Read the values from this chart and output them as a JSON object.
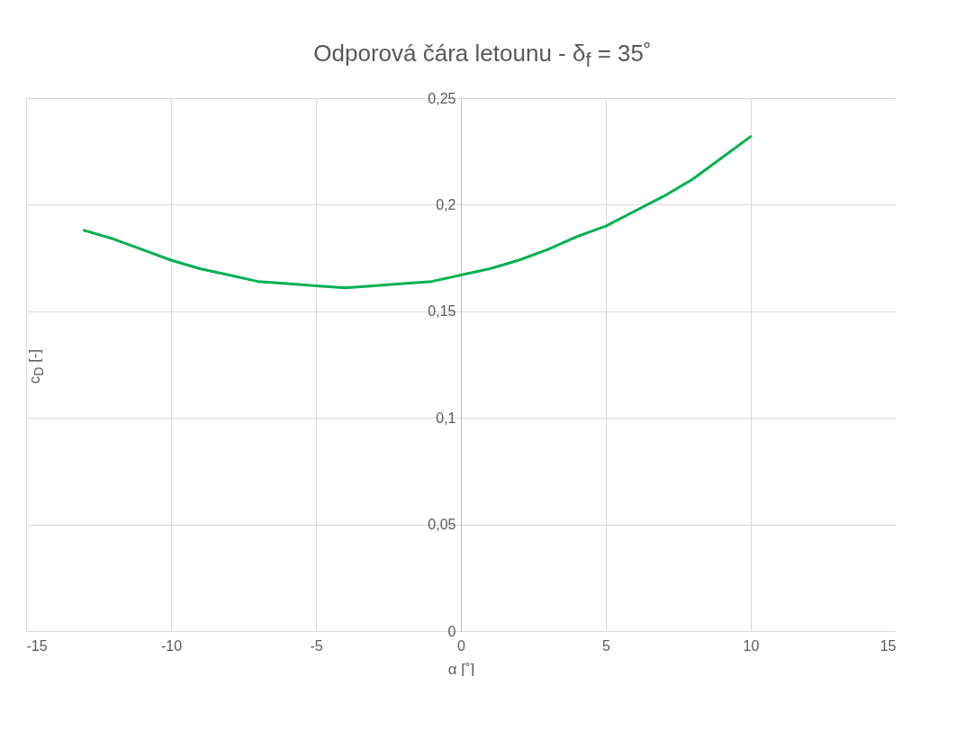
{
  "chart_data": {
    "type": "line",
    "title": "Odporová čára letounu - δ$_{f}$ = 35˚",
    "xlabel": "α [˚]",
    "ylabel": "c$_{D}$ [-]",
    "x": [
      -13,
      -12,
      -11,
      -10,
      -9,
      -8,
      -7,
      -6,
      -5,
      -4,
      -3,
      -2,
      -1,
      0,
      1,
      2,
      3,
      4,
      5,
      6,
      7,
      8,
      9,
      10
    ],
    "series": [
      {
        "color": "#00b050",
        "values": [
          0.188,
          0.184,
          0.179,
          0.174,
          0.17,
          0.167,
          0.164,
          0.163,
          0.162,
          0.161,
          0.162,
          0.163,
          0.164,
          0.167,
          0.17,
          0.174,
          0.179,
          0.185,
          0.19,
          0.197,
          0.204,
          0.212,
          0.222,
          0.232
        ]
      }
    ],
    "xlim": [
      -15,
      15
    ],
    "xticks": [
      -15,
      -10,
      -5,
      0,
      5,
      10,
      15
    ],
    "ylim": [
      0,
      0.25
    ],
    "yticks": [
      {
        "value": 0,
        "label": "0"
      },
      {
        "value": 0.05,
        "label": "0,05"
      },
      {
        "value": 0.1,
        "label": "0,1"
      },
      {
        "value": 0.15,
        "label": "0,15"
      },
      {
        "value": 0.2,
        "label": "0,2"
      },
      {
        "value": 0.25,
        "label": "0,25"
      }
    ],
    "grid": true,
    "marker": "none",
    "line_style": "solid"
  }
}
